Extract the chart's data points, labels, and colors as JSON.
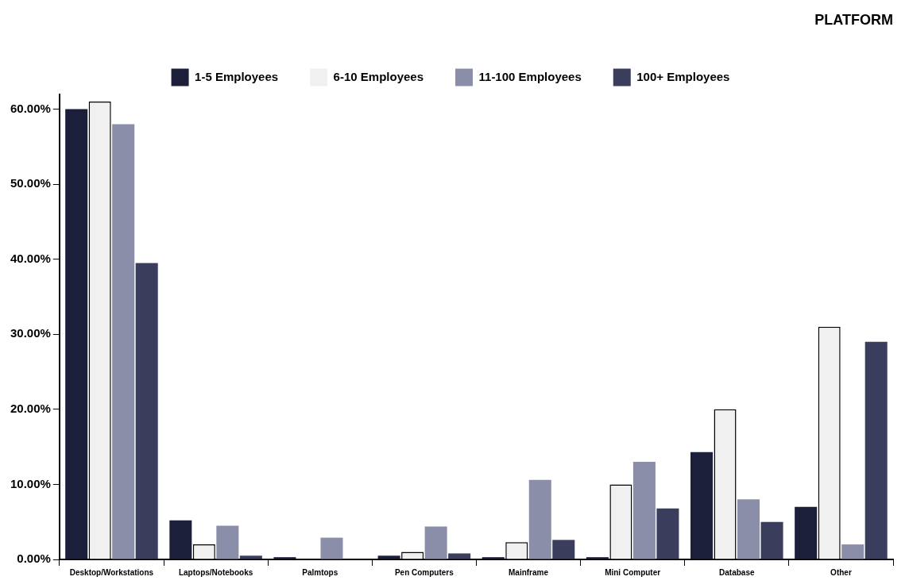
{
  "chart_data": {
    "type": "bar",
    "title": "PLATFORM",
    "categories": [
      "Desktop/Workstations",
      "Laptops/Notebooks",
      "Palmtops",
      "Pen Computers",
      "Mainframe",
      "Mini Computer",
      "Database",
      "Other"
    ],
    "series": [
      {
        "name": "1-5 Employees",
        "color": "#1c1f3a",
        "values": [
          60,
          5.2,
          0.3,
          0.5,
          0.3,
          0.3,
          14.3,
          7
        ]
      },
      {
        "name": "6-10 Employees",
        "color": "#f0f0f0",
        "values": [
          61,
          2,
          0,
          1,
          2.3,
          10,
          20,
          31
        ]
      },
      {
        "name": "11-100 Employees",
        "color": "#8a8ea8",
        "values": [
          58,
          4.5,
          2.9,
          4.4,
          10.6,
          13,
          8,
          2
        ]
      },
      {
        "name": "100+ Employees",
        "color": "#3a3e5c",
        "values": [
          39.5,
          0.5,
          0,
          0.8,
          2.6,
          6.8,
          5,
          29
        ]
      }
    ],
    "ylim": [
      0,
      62
    ],
    "yticks": [
      {
        "value": 0,
        "label": "0.00%"
      },
      {
        "value": 10,
        "label": "10.00%"
      },
      {
        "value": 20,
        "label": "20.00%"
      },
      {
        "value": 30,
        "label": "30.00%"
      },
      {
        "value": 40,
        "label": "40.00%"
      },
      {
        "value": 50,
        "label": "50.00%"
      },
      {
        "value": 60,
        "label": "60.00%"
      }
    ],
    "grid": false,
    "legend": "top"
  }
}
